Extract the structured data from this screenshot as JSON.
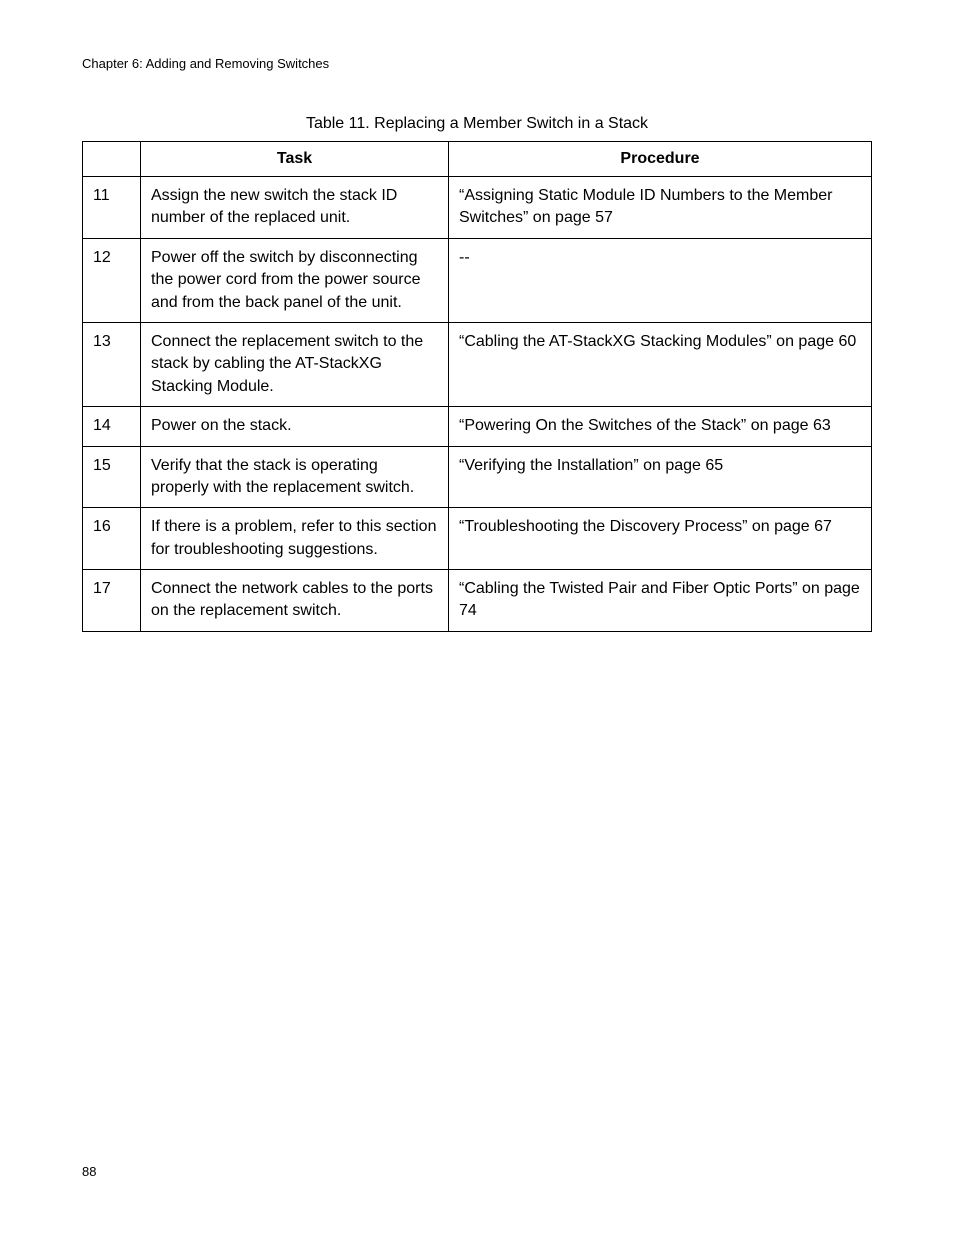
{
  "header": {
    "chapter": "Chapter 6: Adding and Removing Switches"
  },
  "table": {
    "caption": "Table 11. Replacing a Member Switch in a Stack",
    "headers": {
      "num": "",
      "task": "Task",
      "procedure": "Procedure"
    },
    "rows": [
      {
        "num": "11",
        "task": "Assign the new switch the stack ID number of the replaced unit.",
        "procedure": "“Assigning Static Module ID Numbers to the Member Switches” on page 57"
      },
      {
        "num": "12",
        "task": "Power off the switch by disconnecting the power cord from the power source and from the back panel of the unit.",
        "procedure": "--"
      },
      {
        "num": "13",
        "task": "Connect the replacement switch to the stack by cabling the AT-StackXG Stacking Module.",
        "procedure": "“Cabling the AT-StackXG Stacking Modules” on page 60"
      },
      {
        "num": "14",
        "task": "Power on the stack.",
        "procedure": "“Powering On the Switches of the Stack” on page 63"
      },
      {
        "num": "15",
        "task": "Verify that the stack is operating properly with the replacement switch.",
        "procedure": "“Verifying the Installation” on page 65"
      },
      {
        "num": "16",
        "task": "If there is a problem, refer to this section for troubleshooting suggestions.",
        "procedure": "“Troubleshooting the Discovery Process” on page 67"
      },
      {
        "num": "17",
        "task": "Connect the network cables to the ports on the replacement switch.",
        "procedure": "“Cabling the Twisted Pair and Fiber Optic Ports” on page 74"
      }
    ]
  },
  "footer": {
    "page_number": "88"
  }
}
